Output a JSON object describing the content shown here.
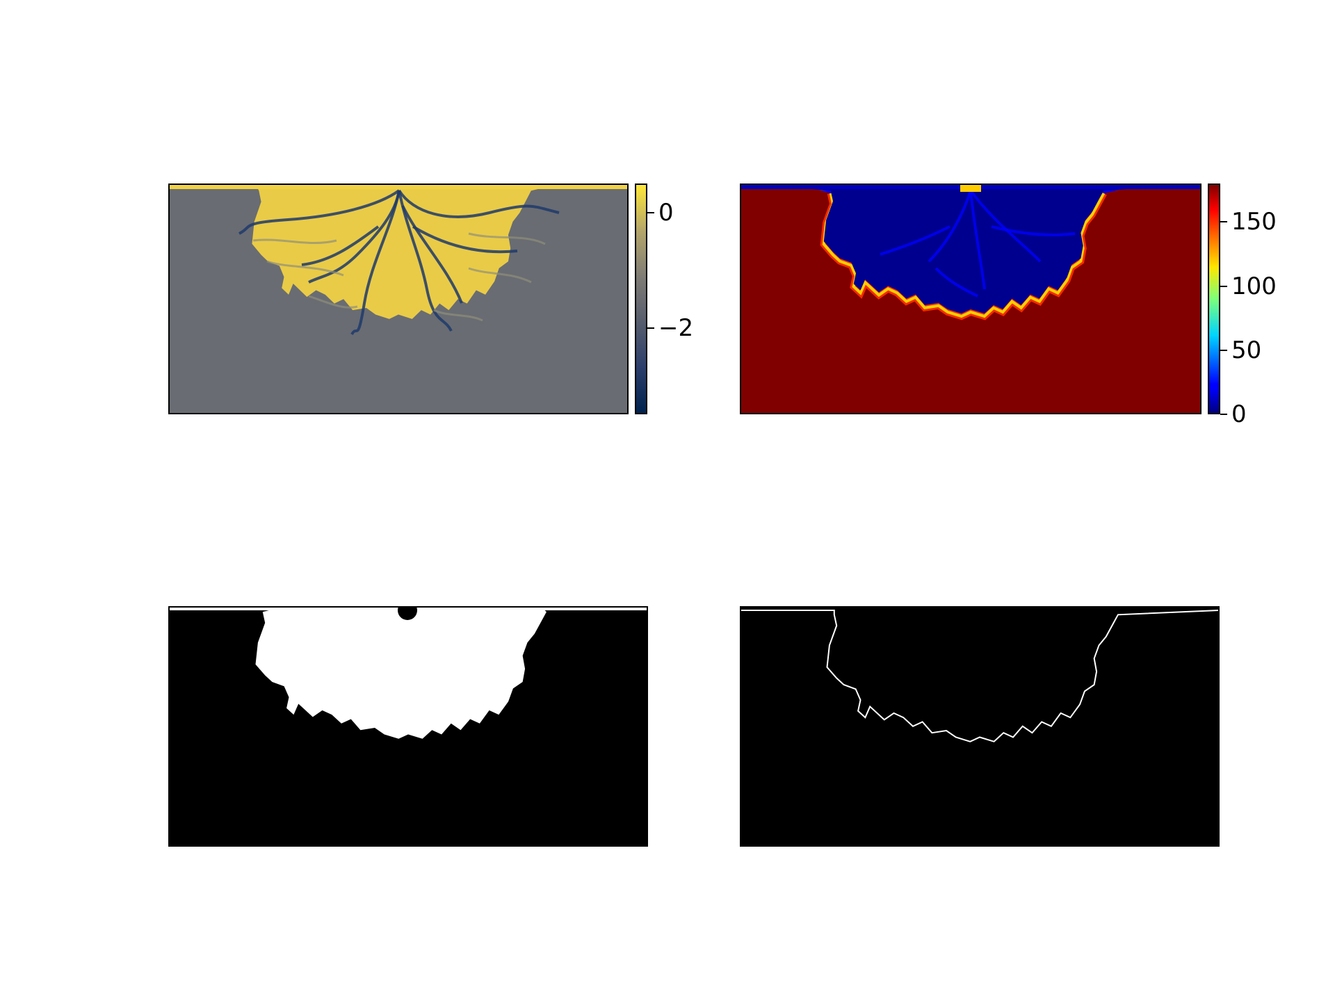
{
  "chart_data": [
    {
      "type": "heatmap",
      "description_key": "delta-elevation",
      "colormap": "cividis",
      "colorbar": {
        "range": [
          -3.5,
          0.5
        ],
        "ticks": [
          {
            "value": 0,
            "label": "0"
          },
          {
            "value": -2,
            "label": "−2"
          }
        ]
      },
      "colors": {
        "ocean": "#696c72",
        "land": "#f0d145",
        "channel": "#1f3a6b"
      }
    },
    {
      "type": "heatmap",
      "description_key": "distance-to-land",
      "colormap": "jet",
      "colorbar": {
        "range": [
          0,
          180
        ],
        "ticks": [
          {
            "value": 0,
            "label": "0"
          },
          {
            "value": 50,
            "label": "50"
          },
          {
            "value": 100,
            "label": "100"
          },
          {
            "value": 150,
            "label": "150"
          }
        ]
      },
      "colors": {
        "far": "#800000",
        "near": "#00008f"
      }
    },
    {
      "type": "heatmap",
      "description_key": "binary-land-mask",
      "colormap": "gray",
      "colors": {
        "land": "#ffffff",
        "water": "#000000"
      }
    },
    {
      "type": "heatmap",
      "description_key": "shoreline-edge",
      "colormap": "gray",
      "colors": {
        "edge": "#ffffff",
        "background": "#000000"
      }
    }
  ]
}
